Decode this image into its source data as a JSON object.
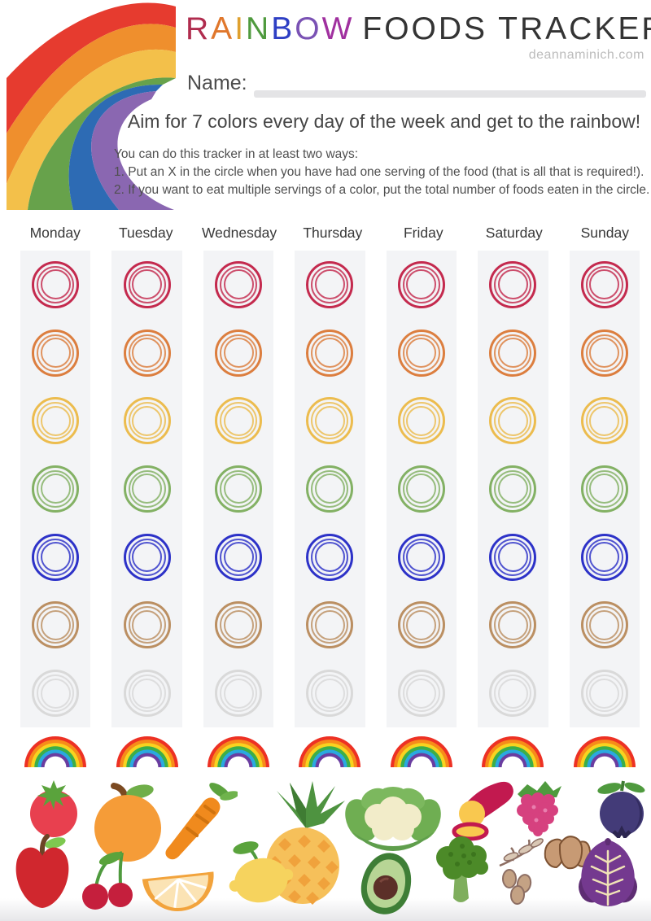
{
  "header": {
    "rainbow_word": [
      {
        "ch": "R",
        "color": "#b02c4e"
      },
      {
        "ch": "A",
        "color": "#e0772c"
      },
      {
        "ch": "I",
        "color": "#dfa02e"
      },
      {
        "ch": "N",
        "color": "#4f9a3e"
      },
      {
        "ch": "B",
        "color": "#2e3fc4"
      },
      {
        "ch": "O",
        "color": "#7a52b4"
      },
      {
        "ch": "W",
        "color": "#a0309f"
      }
    ],
    "title_rest": "FOODS TRACKER",
    "website": "deannaminich.com",
    "name_label": "Name:"
  },
  "subtitle": "Aim for 7 colors every day of the week and get to the rainbow!",
  "instructions": [
    "You can do this tracker in at least two ways:",
    "1. Put an X in the circle when you have had one serving of the food (that is all that is required!).",
    "2. If you want to eat multiple servings of a color, put the total number of foods eaten in the circle."
  ],
  "days": [
    "Monday",
    "Tuesday",
    "Wednesday",
    "Thursday",
    "Friday",
    "Saturday",
    "Sunday"
  ],
  "grid": {
    "rows_per_day": 7,
    "column_bg": "#f3f4f6",
    "row_colors": [
      {
        "name": "red",
        "hex": "#c42a4e"
      },
      {
        "name": "orange",
        "hex": "#dc7e3f"
      },
      {
        "name": "yellow",
        "hex": "#ecbc4e"
      },
      {
        "name": "green",
        "hex": "#83b164"
      },
      {
        "name": "blue",
        "hex": "#2d32c8"
      },
      {
        "name": "tan",
        "hex": "#bb8f62"
      },
      {
        "name": "white",
        "hex": "#d9d9d9"
      }
    ]
  },
  "corner_rainbow": {
    "band_colors": [
      "#e63b2f",
      "#ef8f2d",
      "#f3c04a",
      "#67a24b",
      "#2d6bb4",
      "#8a67b1"
    ]
  },
  "footer": {
    "rainbow_count": 7,
    "rainbow_band_colors": [
      "#ed3124",
      "#f78c1a",
      "#f8d31f",
      "#3cae49",
      "#2aa9e0",
      "#6a3da0"
    ],
    "fruit_icons": [
      "tomato",
      "orange",
      "carrot",
      "pineapple",
      "cauliflower",
      "sweet-potato",
      "raspberry",
      "blueberry",
      "apple",
      "cherries",
      "orange-slice",
      "lemon",
      "avocado",
      "broccoli",
      "dates",
      "shallots",
      "red-cabbage"
    ]
  }
}
